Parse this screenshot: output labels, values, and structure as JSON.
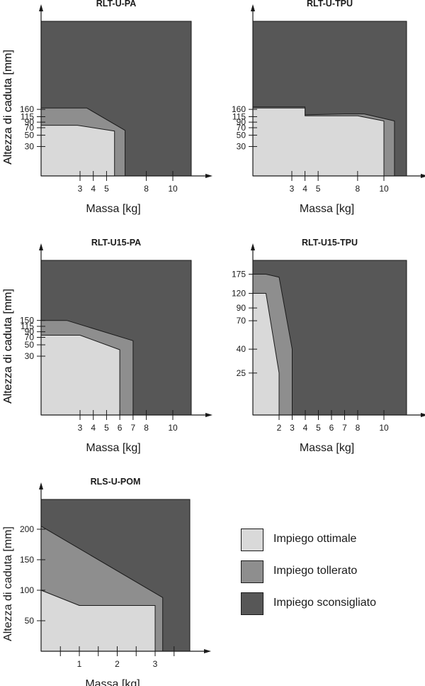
{
  "colors": {
    "ottimale": "#d9d9d9",
    "tollerato": "#8e8e8e",
    "sconsigliato": "#575757",
    "line": "#1a1a1a"
  },
  "legend": {
    "items": [
      {
        "label": "Impiego ottimale",
        "color": "#d9d9d9"
      },
      {
        "label": "Impiego tollerato",
        "color": "#8e8e8e"
      },
      {
        "label": "Impiego sconsigliato",
        "color": "#575757"
      }
    ]
  },
  "chart_data": [
    {
      "type": "area",
      "title": "RLT-U-PA",
      "xlabel": "Massa [kg]",
      "ylabel": "Altezza di caduta [mm]",
      "xticks": [
        3,
        4,
        5,
        8,
        10
      ],
      "yticks": [
        30,
        50,
        70,
        90,
        115,
        160
      ],
      "series": [
        {
          "name": "Impiego ottimale",
          "x": [
            0,
            2.8,
            5.6,
            5.6
          ],
          "y": [
            78,
            78,
            60,
            0
          ]
        },
        {
          "name": "Impiego tollerato",
          "x": [
            0,
            3.5,
            6.4,
            6.4
          ],
          "y": [
            170,
            170,
            62,
            0
          ]
        }
      ]
    },
    {
      "type": "area",
      "title": "RLT-U-TPU",
      "xlabel": "Massa [kg]",
      "ylabel": "Altezza di caduta [mm]",
      "xticks": [
        3,
        4,
        5,
        8,
        10
      ],
      "yticks": [
        30,
        50,
        70,
        90,
        115,
        160
      ],
      "series": [
        {
          "name": "Impiego ottimale",
          "x": [
            0,
            4,
            4,
            8,
            10,
            10
          ],
          "y": [
            170,
            170,
            120,
            120,
            95,
            0
          ]
        },
        {
          "name": "Impiego tollerato",
          "x": [
            0,
            4,
            4,
            7,
            8.5,
            10.8,
            10.8
          ],
          "y": [
            178,
            178,
            125,
            130,
            130,
            95,
            0
          ]
        }
      ]
    },
    {
      "type": "area",
      "title": "RLT-U15-PA",
      "xlabel": "Massa [kg]",
      "ylabel": "Altezza di caduta [mm]",
      "xticks": [
        3,
        4,
        5,
        6,
        7,
        8,
        10
      ],
      "yticks": [
        30,
        50,
        70,
        90,
        115,
        150
      ],
      "series": [
        {
          "name": "Impiego ottimale",
          "x": [
            0,
            3,
            6,
            6
          ],
          "y": [
            77,
            77,
            40,
            0
          ]
        },
        {
          "name": "Impiego tollerato",
          "x": [
            0,
            2,
            7,
            7
          ],
          "y": [
            150,
            150,
            60,
            0
          ]
        }
      ]
    },
    {
      "type": "area",
      "title": "RLT-U15-TPU",
      "xlabel": "Massa [kg]",
      "ylabel": "Altezza di caduta [mm]",
      "xticks": [
        2,
        3,
        4,
        5,
        6,
        7,
        8,
        10
      ],
      "yticks": [
        25,
        40,
        70,
        90,
        120,
        175
      ],
      "series": [
        {
          "name": "Impiego ottimale",
          "x": [
            0,
            1,
            2,
            2
          ],
          "y": [
            120,
            120,
            25,
            0
          ]
        },
        {
          "name": "Impiego tollerato",
          "x": [
            0,
            1,
            2,
            3,
            3
          ],
          "y": [
            175,
            175,
            165,
            40,
            0
          ]
        }
      ]
    },
    {
      "type": "area",
      "title": "RLS-U-POM",
      "xlabel": "Massa [kg]",
      "ylabel": "Altezza di caduta [mm]",
      "xticks": [
        0.5,
        1,
        1.5,
        2,
        2.5,
        3,
        3.5
      ],
      "xticklabels": [
        "",
        "1",
        "",
        "2",
        "",
        "3",
        ""
      ],
      "yticks": [
        50,
        100,
        150,
        200
      ],
      "series": [
        {
          "name": "Impiego ottimale",
          "x": [
            0,
            1,
            3,
            3
          ],
          "y": [
            100,
            75,
            75,
            0
          ]
        },
        {
          "name": "Impiego tollerato",
          "x": [
            0,
            3.2,
            3.2
          ],
          "y": [
            205,
            88,
            0
          ]
        }
      ]
    }
  ]
}
